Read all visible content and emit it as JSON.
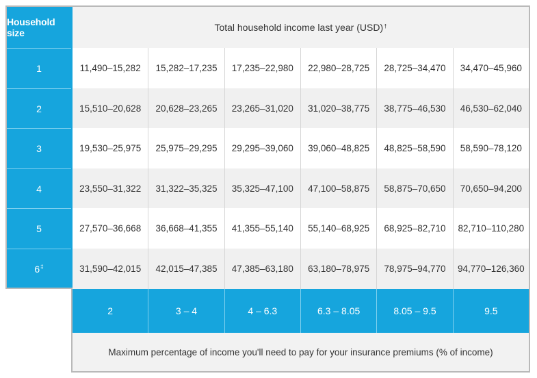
{
  "header": {
    "household_size_label": "Household size",
    "income_title": "Total household income last year (USD)",
    "income_title_mark": "†"
  },
  "rows": [
    {
      "size": "1",
      "mark": "",
      "cells": [
        "11,490–15,282",
        "15,282–17,235",
        "17,235–22,980",
        "22,980–28,725",
        "28,725–34,470",
        "34,470–45,960"
      ]
    },
    {
      "size": "2",
      "mark": "",
      "cells": [
        "15,510–20,628",
        "20,628–23,265",
        "23,265–31,020",
        "31,020–38,775",
        "38,775–46,530",
        "46,530–62,040"
      ]
    },
    {
      "size": "3",
      "mark": "",
      "cells": [
        "19,530–25,975",
        "25,975–29,295",
        "29,295–39,060",
        "39,060–48,825",
        "48,825–58,590",
        "58,590–78,120"
      ]
    },
    {
      "size": "4",
      "mark": "",
      "cells": [
        "23,550–31,322",
        "31,322–35,325",
        "35,325–47,100",
        "47,100–58,875",
        "58,875–70,650",
        "70,650–94,200"
      ]
    },
    {
      "size": "5",
      "mark": "",
      "cells": [
        "27,570–36,668",
        "36,668–41,355",
        "41,355–55,140",
        "55,140–68,925",
        "68,925–82,710",
        "82,710–110,280"
      ]
    },
    {
      "size": "6",
      "mark": "‡",
      "cells": [
        "31,590–42,015",
        "42,015–47,385",
        "47,385–63,180",
        "63,180–78,975",
        "78,975–94,770",
        "94,770–126,360"
      ]
    }
  ],
  "percentages": [
    "2",
    "3 – 4",
    "4 – 6.3",
    "6.3 – 8.05",
    "8.05 – 9.5",
    "9.5"
  ],
  "footer_text": "Maximum percentage of income you'll need to pay for your insurance premiums (% of income)",
  "colors": {
    "accent_blue": "#16a5dd",
    "row_grey": "#f0f0f0",
    "border": "#b9b9b9"
  }
}
